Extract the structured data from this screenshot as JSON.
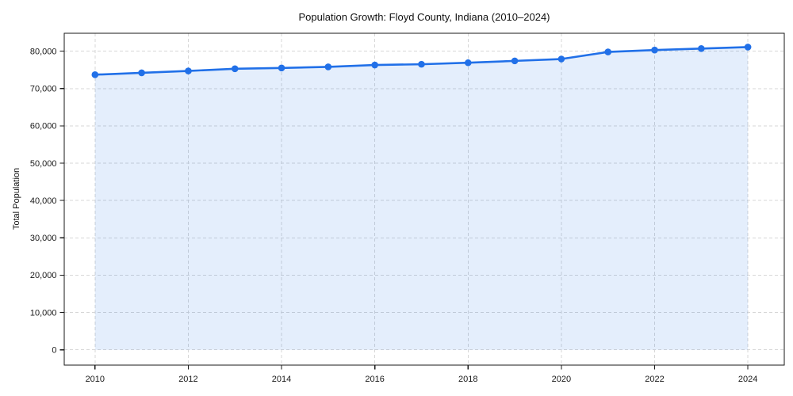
{
  "chart_data": {
    "type": "line",
    "title": "Population Growth: Floyd County, Indiana (2010–2024)",
    "ylabel": "Total Population",
    "xlabel": "",
    "x": [
      2010,
      2011,
      2012,
      2013,
      2014,
      2015,
      2016,
      2017,
      2018,
      2019,
      2020,
      2021,
      2022,
      2023,
      2024
    ],
    "values": [
      73700,
      74200,
      74700,
      75300,
      75500,
      75800,
      76300,
      76500,
      76900,
      77400,
      77900,
      79800,
      80300,
      80700,
      81100
    ],
    "series_name": "Total Population",
    "xticks": [
      2010,
      2012,
      2014,
      2016,
      2018,
      2020,
      2022,
      2024
    ],
    "xtick_labels": [
      "2010",
      "2012",
      "2014",
      "2016",
      "2018",
      "2020",
      "2022",
      "2024"
    ],
    "yticks": [
      0,
      10000,
      20000,
      30000,
      40000,
      50000,
      60000,
      70000,
      80000
    ],
    "ytick_labels": [
      "0",
      "10,000",
      "20,000",
      "30,000",
      "40,000",
      "50,000",
      "60,000",
      "70,000",
      "80,000"
    ],
    "xlim": [
      2009.34,
      2024.78
    ],
    "ylim": [
      -4100,
      84800
    ],
    "grid": true,
    "grid_style": "dashed",
    "legend": false,
    "line_color": "#2170e8",
    "fill_color": "rgba(33,112,232,0.12)",
    "grid_color": "#d7d7d7",
    "spine_color": "#1a1a1a",
    "text_color": "#191919",
    "marker": "circle"
  }
}
